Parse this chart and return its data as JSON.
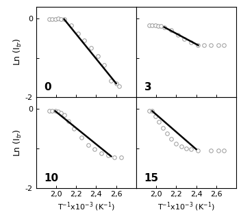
{
  "subplots": [
    {
      "label": "0",
      "scatter_x": [
        1.93,
        1.96,
        1.99,
        2.02,
        2.05,
        2.08,
        2.15,
        2.22,
        2.28,
        2.35,
        2.42,
        2.48,
        2.55,
        2.6,
        2.63
      ],
      "scatter_y": [
        -0.02,
        -0.01,
        -0.01,
        -0.0,
        -0.01,
        -0.02,
        -0.18,
        -0.38,
        -0.55,
        -0.75,
        -0.95,
        -1.18,
        -1.58,
        -1.65,
        -1.72
      ],
      "line_x": [
        2.08,
        2.6
      ],
      "line_y": [
        -0.02,
        -1.65
      ],
      "show_ylabel": true,
      "show_xlabel": false,
      "ylabel": "Ln (I$_{tr}$)"
    },
    {
      "label": "3",
      "scatter_x": [
        1.93,
        1.96,
        1.99,
        2.02,
        2.05,
        2.08,
        2.15,
        2.22,
        2.28,
        2.35,
        2.42,
        2.48,
        2.55,
        2.62,
        2.68
      ],
      "scatter_y": [
        -0.18,
        -0.18,
        -0.18,
        -0.19,
        -0.2,
        -0.22,
        -0.3,
        -0.42,
        -0.52,
        -0.6,
        -0.68,
        -0.68,
        -0.68,
        -0.68,
        -0.68
      ],
      "line_x": [
        2.08,
        2.42
      ],
      "line_y": [
        -0.22,
        -0.68
      ],
      "show_ylabel": false,
      "show_xlabel": false,
      "ylabel": ""
    },
    {
      "label": "10",
      "scatter_x": [
        1.93,
        1.96,
        1.99,
        2.02,
        2.05,
        2.08,
        2.12,
        2.18,
        2.25,
        2.32,
        2.38,
        2.45,
        2.52,
        2.58,
        2.65
      ],
      "scatter_y": [
        -0.05,
        -0.05,
        -0.05,
        -0.07,
        -0.1,
        -0.15,
        -0.3,
        -0.5,
        -0.72,
        -0.92,
        -1.02,
        -1.12,
        -1.18,
        -1.22,
        -1.22
      ],
      "line_x": [
        1.99,
        2.55
      ],
      "line_y": [
        -0.05,
        -1.2
      ],
      "show_ylabel": true,
      "show_xlabel": true,
      "ylabel": "Ln (I$_{tr}$)"
    },
    {
      "label": "15",
      "scatter_x": [
        1.93,
        1.96,
        1.99,
        2.03,
        2.07,
        2.11,
        2.15,
        2.2,
        2.25,
        2.3,
        2.35,
        2.42,
        2.55,
        2.62,
        2.68
      ],
      "scatter_y": [
        -0.05,
        -0.05,
        -0.18,
        -0.32,
        -0.48,
        -0.62,
        -0.75,
        -0.88,
        -0.95,
        -1.0,
        -1.02,
        -1.05,
        -1.05,
        -1.05,
        -1.05
      ],
      "line_x": [
        1.96,
        2.4
      ],
      "line_y": [
        -0.05,
        -1.02
      ],
      "show_ylabel": false,
      "show_xlabel": true,
      "ylabel": ""
    }
  ],
  "xlim": [
    1.8,
    2.8
  ],
  "ylim": [
    -2.0,
    0.3
  ],
  "xticks": [
    2.0,
    2.2,
    2.4,
    2.6
  ],
  "xtick_labels": [
    "2,0",
    "2,2",
    "2,4",
    "2,6"
  ],
  "yticks_left_top": [
    0.0,
    -2.0
  ],
  "ytick_labels_left_top": [
    "0",
    "-2"
  ],
  "yticks_left_bottom": [
    0.0,
    -2.0
  ],
  "ytick_labels_left_bottom": [
    "0",
    "-2"
  ],
  "xlabel": "T$^{-1}$x10$^{-3}$ (K$^{-1}$)",
  "scatter_color": "white",
  "scatter_edgecolor": "#999999",
  "line_color": "black",
  "bg_color": "white",
  "label_fontsize": 9,
  "tick_fontsize": 8,
  "xlabel_fontsize": 8,
  "ylabel_fontsize": 9
}
